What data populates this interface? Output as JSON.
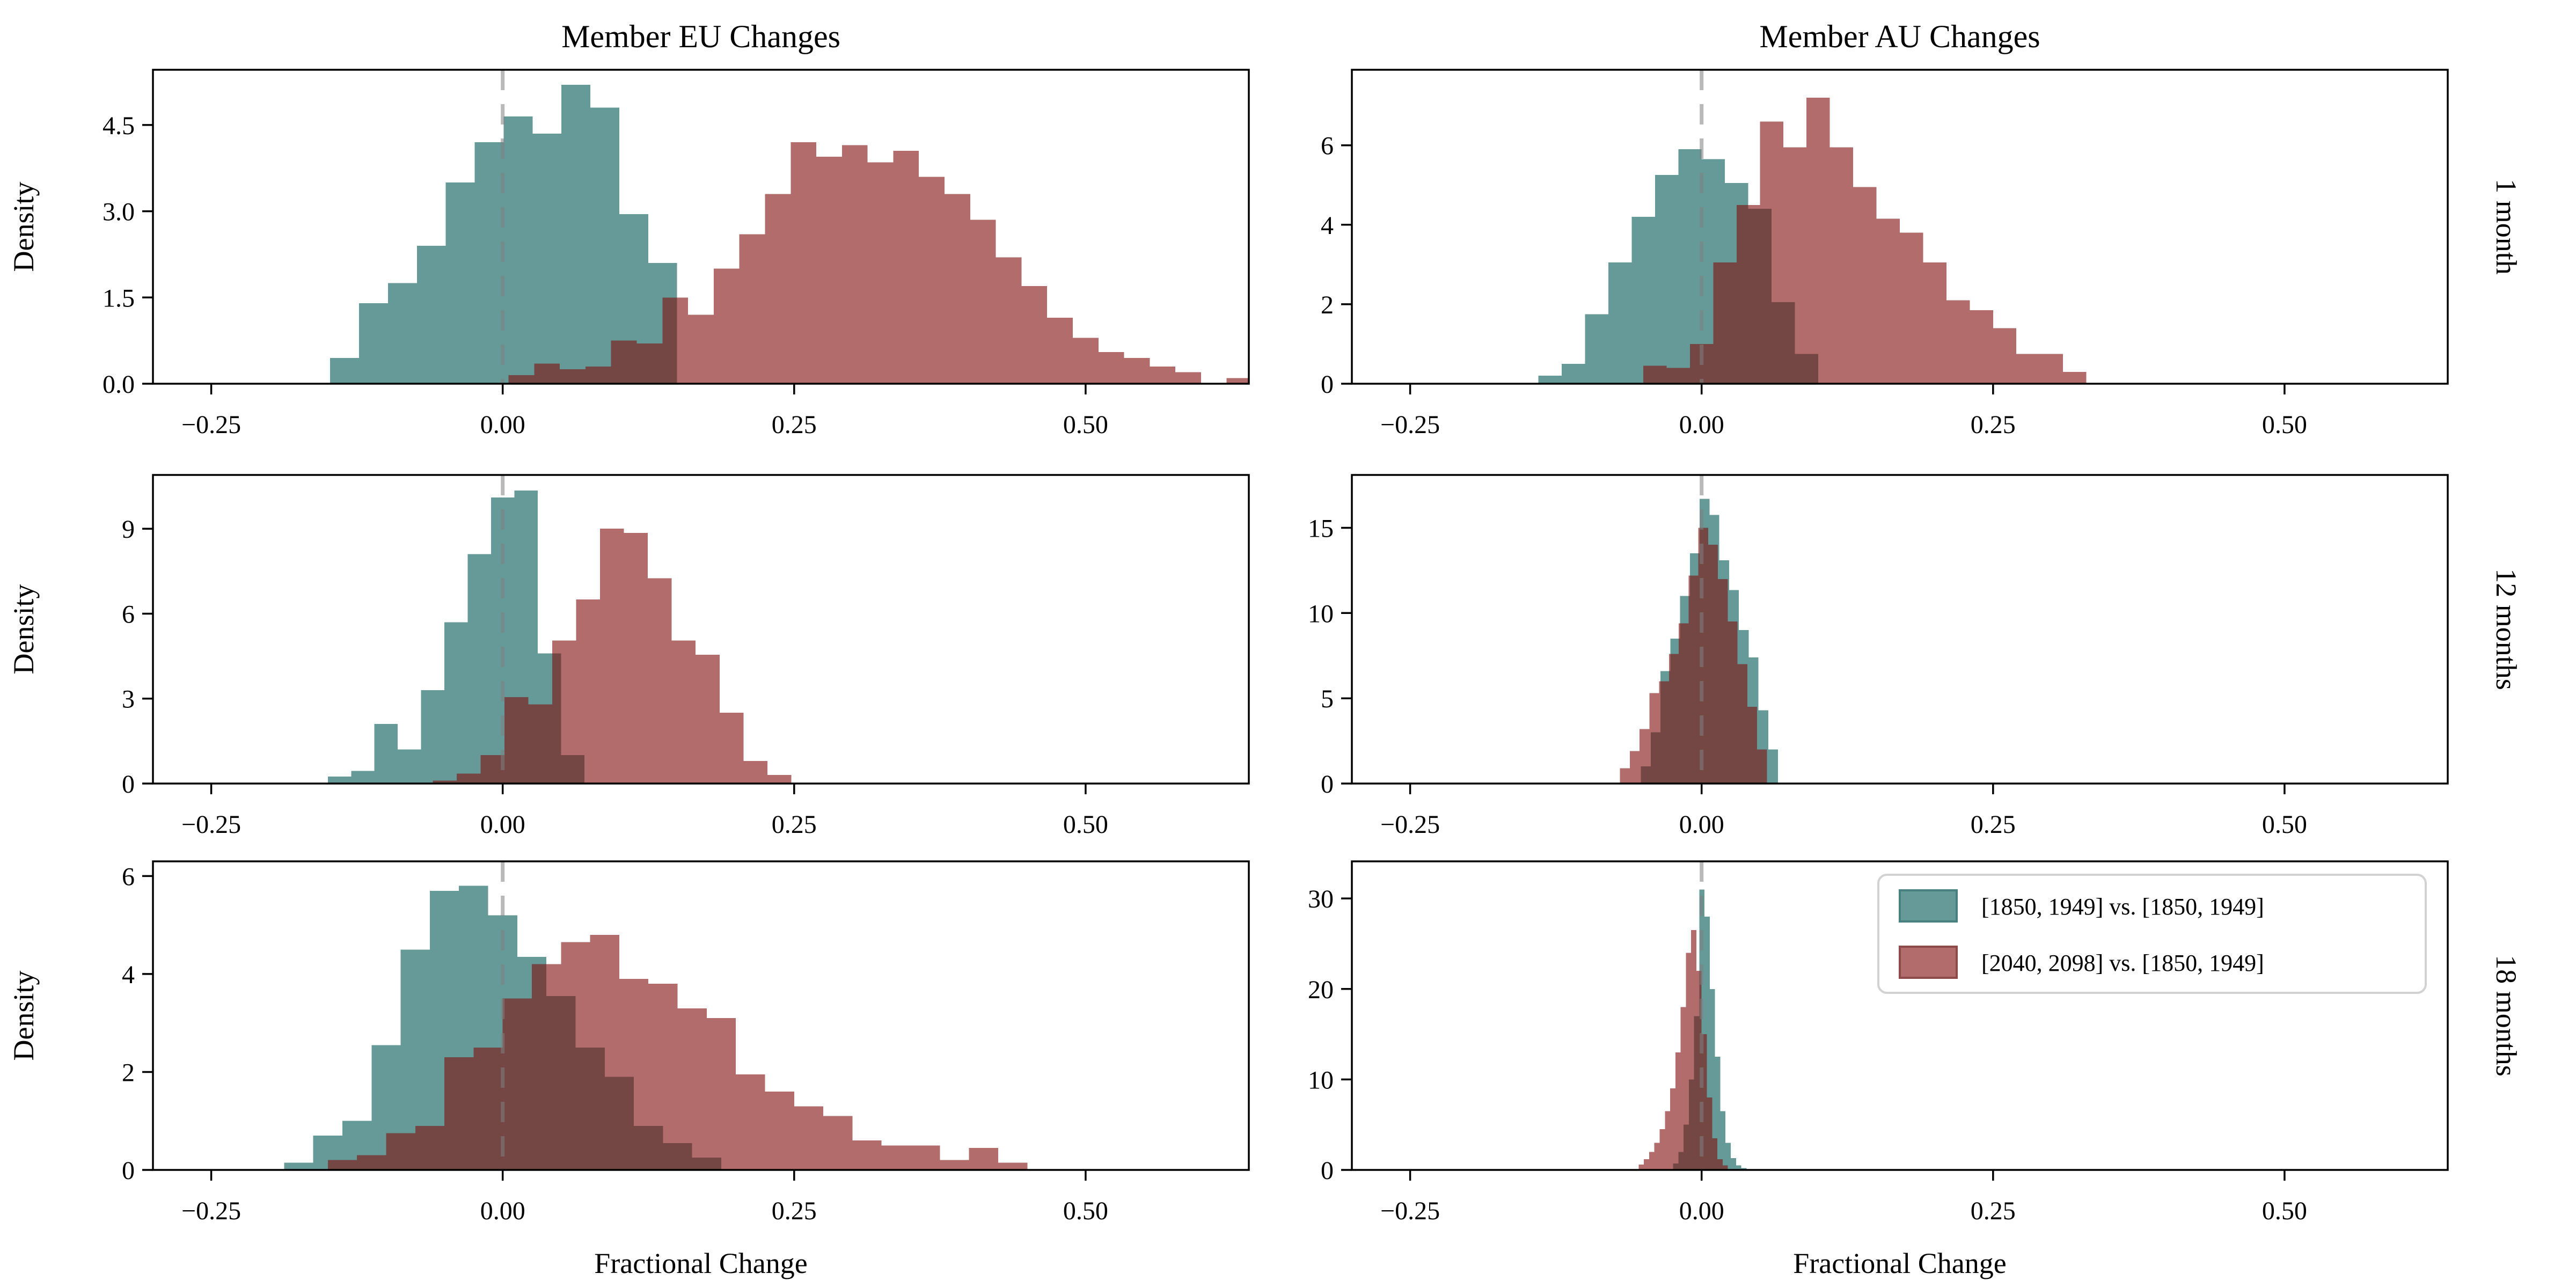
{
  "figure": {
    "background": "#ffffff"
  },
  "chart_data": {
    "type": "histogram-grid",
    "grid": {
      "rows": 3,
      "cols": 2
    },
    "column_titles": [
      "Member EU Changes",
      "Member AU Changes"
    ],
    "row_labels": [
      "1 month",
      "12 months",
      "18 months"
    ],
    "ylabel": "Density",
    "xlabel": "Fractional Change",
    "xlim": [
      -0.3,
      0.64
    ],
    "xticks": {
      "values": [
        -0.25,
        0.0,
        0.25,
        0.5
      ],
      "labels": [
        "−0.25",
        "0.00",
        "0.25",
        "0.50"
      ]
    },
    "zero_line": {
      "x": 0.0,
      "style": "dashed"
    },
    "panels": [
      {
        "name": "eu-1month",
        "col": 0,
        "row": 0,
        "ylim": [
          0,
          5.46
        ],
        "yticks": {
          "values": [
            0,
            1.5,
            3,
            4.5
          ],
          "labels": [
            "0.0",
            "1.5",
            "3.0",
            "4.5"
          ]
        },
        "series": [
          {
            "key": "baseline",
            "bin_start": -0.148,
            "bin_width": 0.0248,
            "density": [
              0.45,
              1.4,
              1.75,
              2.4,
              3.5,
              4.2,
              4.65,
              4.35,
              5.2,
              4.8,
              2.95,
              2.1
            ]
          },
          {
            "key": "future",
            "bin_start": 0.005,
            "bin_width": 0.022,
            "density": [
              0.15,
              0.35,
              0.25,
              0.3,
              0.75,
              0.7,
              1.5,
              1.2,
              2.0,
              2.6,
              3.3,
              4.2,
              3.95,
              4.15,
              3.85,
              4.05,
              3.6,
              3.3,
              2.85,
              2.2,
              1.7,
              1.15,
              0.8,
              0.55,
              0.45,
              0.3,
              0.2,
              0.0,
              0.1
            ]
          }
        ]
      },
      {
        "name": "au-1month",
        "col": 1,
        "row": 0,
        "ylim": [
          0,
          7.9
        ],
        "yticks": {
          "values": [
            0,
            2,
            4,
            6
          ],
          "labels": [
            "0",
            "2",
            "4",
            "6"
          ]
        },
        "series": [
          {
            "key": "baseline",
            "bin_start": -0.14,
            "bin_width": 0.02,
            "density": [
              0.2,
              0.5,
              1.75,
              3.05,
              4.2,
              5.25,
              5.9,
              5.65,
              5.05,
              4.4,
              2.05,
              0.75
            ]
          },
          {
            "key": "future",
            "bin_start": -0.05,
            "bin_width": 0.02,
            "density": [
              0.45,
              0.4,
              1.0,
              3.05,
              4.5,
              6.6,
              5.95,
              7.2,
              5.95,
              4.95,
              4.15,
              3.8,
              3.05,
              2.1,
              1.85,
              1.4,
              0.75,
              0.75,
              0.3
            ]
          }
        ]
      },
      {
        "name": "eu-12months",
        "col": 0,
        "row": 1,
        "ylim": [
          0,
          10.9
        ],
        "yticks": {
          "values": [
            0,
            3,
            6,
            9
          ],
          "labels": [
            "0",
            "3",
            "6",
            "9"
          ]
        },
        "series": [
          {
            "key": "baseline",
            "bin_start": -0.15,
            "bin_width": 0.02,
            "density": [
              0.25,
              0.45,
              2.1,
              1.2,
              3.3,
              5.7,
              8.1,
              10.1,
              10.35,
              4.6,
              1.0
            ]
          },
          {
            "key": "future",
            "bin_start": -0.06,
            "bin_width": 0.0205,
            "density": [
              0.1,
              0.35,
              1.0,
              3.05,
              2.8,
              5.05,
              6.5,
              9.0,
              8.85,
              7.25,
              5.05,
              4.55,
              2.5,
              0.8,
              0.3
            ]
          }
        ]
      },
      {
        "name": "au-12months",
        "col": 1,
        "row": 1,
        "ylim": [
          0,
          18.1
        ],
        "yticks": {
          "values": [
            0,
            5,
            10,
            15
          ],
          "labels": [
            "0",
            "5",
            "10",
            "15"
          ]
        },
        "series": [
          {
            "key": "baseline",
            "bin_start": -0.052,
            "bin_width": 0.0084,
            "density": [
              1.0,
              3.0,
              6.6,
              8.5,
              11.0,
              13.5,
              16.7,
              15.75,
              13.1,
              11.35,
              9.0,
              7.4,
              4.3,
              2.0
            ]
          },
          {
            "key": "future",
            "bin_start": -0.07,
            "bin_width": 0.0084,
            "density": [
              0.9,
              1.9,
              3.2,
              5.3,
              6.0,
              7.6,
              9.4,
              12.2,
              15.0,
              14.0,
              12.0,
              9.5,
              7.0,
              4.5,
              2.0
            ]
          }
        ]
      },
      {
        "name": "eu-18months",
        "col": 0,
        "row": 2,
        "ylim": [
          0,
          6.3
        ],
        "yticks": {
          "values": [
            0,
            2,
            4,
            6
          ],
          "labels": [
            "0",
            "2",
            "4",
            "6"
          ]
        },
        "series": [
          {
            "key": "baseline",
            "bin_start": -0.1875,
            "bin_width": 0.025,
            "density": [
              0.15,
              0.7,
              1.0,
              2.55,
              4.5,
              5.7,
              5.8,
              5.2,
              4.35,
              3.55,
              2.5,
              1.9,
              0.9,
              0.55,
              0.25
            ]
          },
          {
            "key": "future",
            "bin_start": -0.15,
            "bin_width": 0.025,
            "density": [
              0.2,
              0.3,
              0.75,
              0.9,
              2.3,
              2.5,
              3.5,
              4.2,
              4.65,
              4.8,
              3.9,
              3.8,
              3.3,
              3.1,
              1.95,
              1.6,
              1.3,
              1.1,
              0.6,
              0.5,
              0.5,
              0.2,
              0.45,
              0.15
            ]
          }
        ]
      },
      {
        "name": "au-18months",
        "col": 1,
        "row": 2,
        "ylim": [
          0,
          34.1
        ],
        "yticks": {
          "values": [
            0,
            10,
            20,
            30
          ],
          "labels": [
            "0",
            "10",
            "20",
            "30"
          ]
        },
        "series": [
          {
            "key": "baseline",
            "bin_start": -0.0245,
            "bin_width": 0.0045,
            "density": [
              0.7,
              2.0,
              5.0,
              10.0,
              17.0,
              31.0,
              28.0,
              20.0,
              12.5,
              6.5,
              3.0,
              1.3,
              0.5,
              0.2
            ]
          },
          {
            "key": "future",
            "bin_start": -0.054,
            "bin_width": 0.0045,
            "density": [
              0.6,
              1.2,
              2.0,
              3.0,
              4.5,
              6.5,
              9.0,
              13.0,
              18.0,
              24.0,
              26.5,
              22.0,
              15.0,
              8.0,
              3.5,
              1.2,
              0.5
            ]
          }
        ]
      }
    ]
  },
  "legend": {
    "location": "bottom-right-panel",
    "entries": [
      {
        "key": "baseline",
        "label": "[1850, 1949] vs. [1850, 1949]"
      },
      {
        "key": "future",
        "label": "[2040, 2098] vs. [1850, 1949]"
      }
    ]
  },
  "colors": {
    "baseline_fill": "#659a99",
    "baseline_edge": "#47807e",
    "future_fill": "#b26c6b",
    "future_edge": "#8d4a48",
    "overlap_fill": "#744744",
    "zero_line": "#808080",
    "frame": "#000000",
    "legend_border": "#d2d2d2",
    "text": "#000000"
  }
}
